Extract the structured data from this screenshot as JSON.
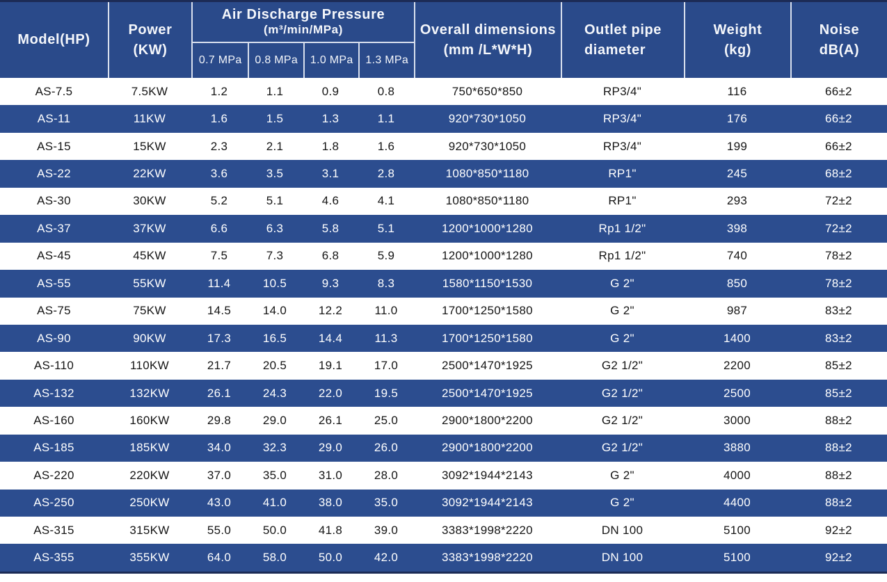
{
  "table": {
    "header": {
      "model": "Model(HP)",
      "power_line1": "Power",
      "power_line2": "(KW)",
      "pressure_title": "Air Discharge Pressure",
      "pressure_subtitle": "(m³/min/MPa)",
      "pressure_cols": [
        "0.7 MPa",
        "0.8 MPa",
        "1.0 MPa",
        "1.3 MPa"
      ],
      "dimensions_line1": "Overall dimensions",
      "dimensions_line2": "(mm /L*W*H)",
      "outlet_line1": "Outlet pipe",
      "outlet_line2": "diameter",
      "weight_line1": "Weight",
      "weight_line2": "(kg)",
      "noise_line1": "Noise",
      "noise_line2": "dB(A)"
    }
  },
  "chart_data": {
    "type": "table",
    "columns": [
      "Model(HP)",
      "Power (KW)",
      "0.7 MPa",
      "0.8 MPa",
      "1.0 MPa",
      "1.3 MPa",
      "Overall dimensions (mm /L*W*H)",
      "Outlet pipe diameter",
      "Weight (kg)",
      "Noise dB(A)"
    ],
    "column_group": {
      "label": "Air Discharge Pressure (m³/min/MPa)",
      "spans": [
        "0.7 MPa",
        "0.8 MPa",
        "1.0 MPa",
        "1.3 MPa"
      ]
    },
    "rows": [
      [
        "AS-7.5",
        "7.5KW",
        "1.2",
        "1.1",
        "0.9",
        "0.8",
        "750*650*850",
        "RP3/4\"",
        "116",
        "66±2"
      ],
      [
        "AS-11",
        "11KW",
        "1.6",
        "1.5",
        "1.3",
        "1.1",
        "920*730*1050",
        "RP3/4\"",
        "176",
        "66±2"
      ],
      [
        "AS-15",
        "15KW",
        "2.3",
        "2.1",
        "1.8",
        "1.6",
        "920*730*1050",
        "RP3/4\"",
        "199",
        "66±2"
      ],
      [
        "AS-22",
        "22KW",
        "3.6",
        "3.5",
        "3.1",
        "2.8",
        "1080*850*1180",
        "RP1\"",
        "245",
        "68±2"
      ],
      [
        "AS-30",
        "30KW",
        "5.2",
        "5.1",
        "4.6",
        "4.1",
        "1080*850*1180",
        "RP1\"",
        "293",
        "72±2"
      ],
      [
        "AS-37",
        "37KW",
        "6.6",
        "6.3",
        "5.8",
        "5.1",
        "1200*1000*1280",
        "Rp1 1/2\"",
        "398",
        "72±2"
      ],
      [
        "AS-45",
        "45KW",
        "7.5",
        "7.3",
        "6.8",
        "5.9",
        "1200*1000*1280",
        "Rp1 1/2\"",
        "740",
        "78±2"
      ],
      [
        "AS-55",
        "55KW",
        "11.4",
        "10.5",
        "9.3",
        "8.3",
        "1580*1150*1530",
        "G 2\"",
        "850",
        "78±2"
      ],
      [
        "AS-75",
        "75KW",
        "14.5",
        "14.0",
        "12.2",
        "11.0",
        "1700*1250*1580",
        "G 2\"",
        "987",
        "83±2"
      ],
      [
        "AS-90",
        "90KW",
        "17.3",
        "16.5",
        "14.4",
        "11.3",
        "1700*1250*1580",
        "G 2\"",
        "1400",
        "83±2"
      ],
      [
        "AS-110",
        "110KW",
        "21.7",
        "20.5",
        "19.1",
        "17.0",
        "2500*1470*1925",
        "G2 1/2\"",
        "2200",
        "85±2"
      ],
      [
        "AS-132",
        "132KW",
        "26.1",
        "24.3",
        "22.0",
        "19.5",
        "2500*1470*1925",
        "G2 1/2\"",
        "2500",
        "85±2"
      ],
      [
        "AS-160",
        "160KW",
        "29.8",
        "29.0",
        "26.1",
        "25.0",
        "2900*1800*2200",
        "G2 1/2\"",
        "3000",
        "88±2"
      ],
      [
        "AS-185",
        "185KW",
        "34.0",
        "32.3",
        "29.0",
        "26.0",
        "2900*1800*2200",
        "G2 1/2\"",
        "3880",
        "88±2"
      ],
      [
        "AS-220",
        "220KW",
        "37.0",
        "35.0",
        "31.0",
        "28.0",
        "3092*1944*2143",
        "G 2\"",
        "4000",
        "88±2"
      ],
      [
        "AS-250",
        "250KW",
        "43.0",
        "41.0",
        "38.0",
        "35.0",
        "3092*1944*2143",
        "G 2\"",
        "4400",
        "88±2"
      ],
      [
        "AS-315",
        "315KW",
        "55.0",
        "50.0",
        "41.8",
        "39.0",
        "3383*1998*2220",
        "DN 100",
        "5100",
        "92±2"
      ],
      [
        "AS-355",
        "355KW",
        "64.0",
        "58.0",
        "50.0",
        "42.0",
        "3383*1998*2220",
        "DN 100",
        "5100",
        "92±2"
      ]
    ]
  },
  "colors": {
    "header_bg": "#2a4a8a",
    "stripe_row_bg": "#2c4d8f",
    "edge_line": "#1c2b55",
    "divider": "#d9e0ee",
    "row_text_dark": "#151515",
    "row_text_light": "#ffffff"
  }
}
